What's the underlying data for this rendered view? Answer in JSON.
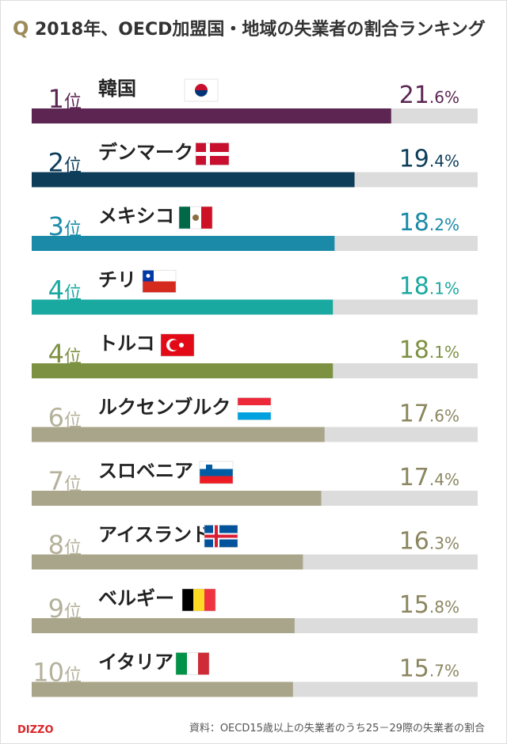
{
  "chart_data": {
    "type": "bar",
    "title_marker": "Q",
    "title": "2018年、OECD加盟国・地域の失業者の割合ランキング",
    "rank_suffix": "位",
    "ranks": [
      "1",
      "2",
      "3",
      "4",
      "4",
      "6",
      "7",
      "8",
      "9",
      "10"
    ],
    "categories": [
      "韓国",
      "デンマーク",
      "メキシコ",
      "チリ",
      "トルコ",
      "ルクセンブルク",
      "スロベニア",
      "アイスランド",
      "ベルギー",
      "イタリア"
    ],
    "values": [
      21.6,
      19.4,
      18.2,
      18.1,
      18.1,
      17.6,
      17.4,
      16.3,
      15.8,
      15.7
    ],
    "value_labels": [
      "21.6%",
      "19.4%",
      "18.2%",
      "18.1%",
      "18.1%",
      "17.6%",
      "17.4%",
      "16.3%",
      "15.8%",
      "15.7%"
    ],
    "colors": [
      "#5c2552",
      "#0e3d5a",
      "#1a8aa8",
      "#19a9a0",
      "#7d9142",
      "#a9a58a",
      "#a9a58a",
      "#a9a58a",
      "#a9a58a",
      "#a9a58a"
    ],
    "xlim": [
      0,
      26.8
    ],
    "logo": "DIZZO",
    "source": "資料：OECD15歳以上の失業者のうち25－29際の失業者の割合"
  }
}
